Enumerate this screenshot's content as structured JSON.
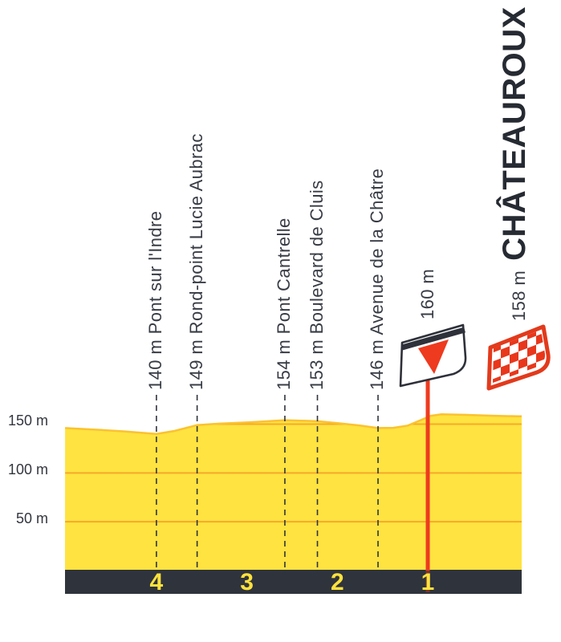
{
  "colors": {
    "profile_fill": "#FFE340",
    "profile_edge": "#FBC22F",
    "gridline": "#F6A92B",
    "axis_band": "#2F333C",
    "km_label": "#FFE23C",
    "red": "#EE3A1E",
    "dash_line": "#30343C",
    "label_text": "#383C45",
    "title_text": "#262A32"
  },
  "chart_data": {
    "type": "area",
    "x_unit": "km_to_finish",
    "x_range": [
      5.01,
      -0.05
    ],
    "y_unit": "m",
    "y_range_m": [
      0,
      165
    ],
    "grid": "horizontal-only",
    "y_ticks": [
      {
        "label": "150 m",
        "m": 150
      },
      {
        "label": "100 m",
        "m": 100
      },
      {
        "label": "50 m",
        "m": 50
      }
    ],
    "km_markers": [
      {
        "label": "4",
        "km": 4
      },
      {
        "label": "3",
        "km": 3
      },
      {
        "label": "2",
        "km": 2
      },
      {
        "label": "1",
        "km": 1
      }
    ],
    "profile_points_km_elevation": [
      [
        5.01,
        146
      ],
      [
        4.7,
        144.5
      ],
      [
        4.35,
        142.5
      ],
      [
        4.0,
        140
      ],
      [
        3.8,
        143
      ],
      [
        3.55,
        149
      ],
      [
        3.3,
        150.5
      ],
      [
        2.95,
        152
      ],
      [
        2.58,
        154
      ],
      [
        2.4,
        153.5
      ],
      [
        2.22,
        153
      ],
      [
        2.0,
        151
      ],
      [
        1.75,
        148.5
      ],
      [
        1.55,
        146
      ],
      [
        1.38,
        146.2
      ],
      [
        1.22,
        148.5
      ],
      [
        1.08,
        154
      ],
      [
        0.97,
        158.5
      ],
      [
        0.85,
        160
      ],
      [
        0.6,
        159.5
      ],
      [
        0.3,
        158.6
      ],
      [
        0.0,
        158
      ],
      [
        -0.05,
        158
      ]
    ],
    "waypoints": [
      {
        "km": 4.0,
        "elevation_label": "140 m",
        "name": "Pont sur l'Indre"
      },
      {
        "km": 3.55,
        "elevation_label": "149 m",
        "name": "Rond-point Lucie Aubrac"
      },
      {
        "km": 2.58,
        "elevation_label": "154 m",
        "name": "Pont Cantrelle"
      },
      {
        "km": 2.22,
        "elevation_label": "153 m",
        "name": "Boulevard de Cluis"
      },
      {
        "km": 1.55,
        "elevation_label": "146 m",
        "name": "Avenue de la Châtre"
      }
    ],
    "flamme_rouge": {
      "km": 1.0,
      "elevation_label": "160 m",
      "icon": "flamme-rouge-flag"
    },
    "finish": {
      "km": 0,
      "elevation_label": "158 m",
      "name": "CHÂTEAUROUX",
      "icon": "checkered-flag"
    }
  }
}
